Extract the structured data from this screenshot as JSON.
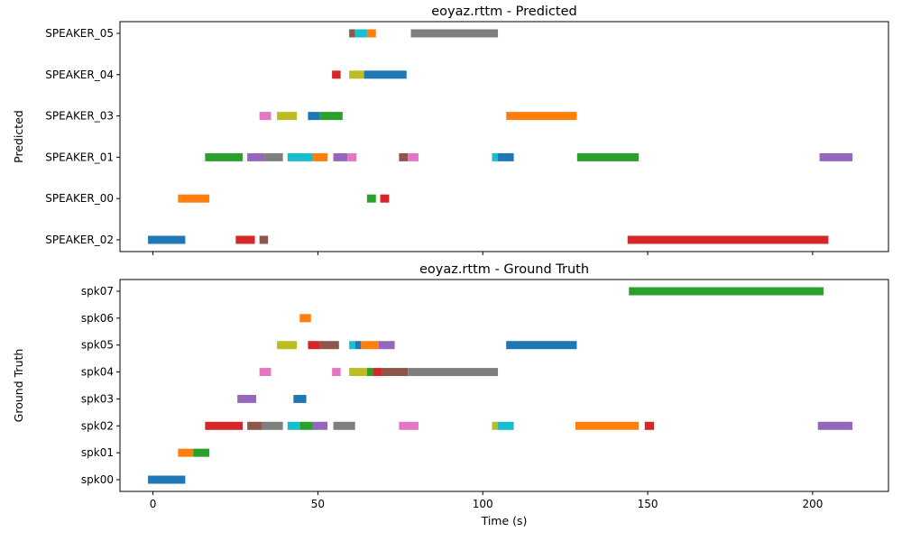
{
  "chart_data": [
    {
      "type": "timeline",
      "title": "eoyaz.rttm - Predicted",
      "xlabel": "",
      "ylabel": "Predicted",
      "xlim": [
        -10,
        223
      ],
      "xticks": [
        0,
        50,
        100,
        150,
        200
      ],
      "x_tick_labels_visible": false,
      "grid": false,
      "rows": [
        "SPEAKER_02",
        "SPEAKER_00",
        "SPEAKER_01",
        "SPEAKER_03",
        "SPEAKER_04",
        "SPEAKER_05"
      ],
      "segments": [
        {
          "row": "SPEAKER_02",
          "start": -1.5,
          "end": 9.8,
          "color": "#1f77b4"
        },
        {
          "row": "SPEAKER_02",
          "start": 25.1,
          "end": 30.9,
          "color": "#d62728"
        },
        {
          "row": "SPEAKER_02",
          "start": 32.3,
          "end": 34.9,
          "color": "#8c564b"
        },
        {
          "row": "SPEAKER_02",
          "start": 143.9,
          "end": 204.8,
          "color": "#d62728"
        },
        {
          "row": "SPEAKER_00",
          "start": 7.6,
          "end": 17.1,
          "color": "#ff7f0e"
        },
        {
          "row": "SPEAKER_00",
          "start": 64.9,
          "end": 67.6,
          "color": "#2ca02c"
        },
        {
          "row": "SPEAKER_00",
          "start": 68.9,
          "end": 71.6,
          "color": "#d62728"
        },
        {
          "row": "SPEAKER_01",
          "start": 15.8,
          "end": 27.2,
          "color": "#2ca02c"
        },
        {
          "row": "SPEAKER_01",
          "start": 28.6,
          "end": 34.0,
          "color": "#9467bd"
        },
        {
          "row": "SPEAKER_01",
          "start": 34.0,
          "end": 39.4,
          "color": "#7f7f7f"
        },
        {
          "row": "SPEAKER_01",
          "start": 40.8,
          "end": 48.4,
          "color": "#17becf"
        },
        {
          "row": "SPEAKER_01",
          "start": 48.4,
          "end": 52.9,
          "color": "#ff7f0e"
        },
        {
          "row": "SPEAKER_01",
          "start": 54.7,
          "end": 59.0,
          "color": "#9467bd"
        },
        {
          "row": "SPEAKER_01",
          "start": 59.0,
          "end": 61.7,
          "color": "#e377c2"
        },
        {
          "row": "SPEAKER_01",
          "start": 74.6,
          "end": 77.3,
          "color": "#8c564b"
        },
        {
          "row": "SPEAKER_01",
          "start": 77.3,
          "end": 80.5,
          "color": "#e377c2"
        },
        {
          "row": "SPEAKER_01",
          "start": 102.8,
          "end": 104.6,
          "color": "#17becf"
        },
        {
          "row": "SPEAKER_01",
          "start": 104.6,
          "end": 109.4,
          "color": "#1f77b4"
        },
        {
          "row": "SPEAKER_01",
          "start": 128.6,
          "end": 147.3,
          "color": "#2ca02c"
        },
        {
          "row": "SPEAKER_01",
          "start": 202.1,
          "end": 212.1,
          "color": "#9467bd"
        },
        {
          "row": "SPEAKER_03",
          "start": 32.3,
          "end": 35.8,
          "color": "#e377c2"
        },
        {
          "row": "SPEAKER_03",
          "start": 37.6,
          "end": 43.6,
          "color": "#bcbd22"
        },
        {
          "row": "SPEAKER_03",
          "start": 47.0,
          "end": 50.6,
          "color": "#1f77b4"
        },
        {
          "row": "SPEAKER_03",
          "start": 50.6,
          "end": 57.5,
          "color": "#2ca02c"
        },
        {
          "row": "SPEAKER_03",
          "start": 107.1,
          "end": 128.5,
          "color": "#ff7f0e"
        },
        {
          "row": "SPEAKER_04",
          "start": 54.3,
          "end": 56.9,
          "color": "#d62728"
        },
        {
          "row": "SPEAKER_04",
          "start": 59.5,
          "end": 64.0,
          "color": "#bcbd22"
        },
        {
          "row": "SPEAKER_04",
          "start": 64.0,
          "end": 76.9,
          "color": "#1f77b4"
        },
        {
          "row": "SPEAKER_05",
          "start": 59.5,
          "end": 61.3,
          "color": "#8c564b"
        },
        {
          "row": "SPEAKER_05",
          "start": 61.3,
          "end": 64.9,
          "color": "#17becf"
        },
        {
          "row": "SPEAKER_05",
          "start": 64.9,
          "end": 67.6,
          "color": "#ff7f0e"
        },
        {
          "row": "SPEAKER_05",
          "start": 78.2,
          "end": 104.6,
          "color": "#7f7f7f"
        }
      ]
    },
    {
      "type": "timeline",
      "title": "eoyaz.rttm - Ground Truth",
      "xlabel": "Time (s)",
      "ylabel": "Ground Truth",
      "xlim": [
        -10,
        223
      ],
      "xticks": [
        0,
        50,
        100,
        150,
        200
      ],
      "x_tick_labels_visible": true,
      "grid": false,
      "rows": [
        "spk00",
        "spk01",
        "spk02",
        "spk03",
        "spk04",
        "spk05",
        "spk06",
        "spk07"
      ],
      "segments": [
        {
          "row": "spk00",
          "start": -1.5,
          "end": 9.8,
          "color": "#1f77b4"
        },
        {
          "row": "spk01",
          "start": 7.6,
          "end": 12.2,
          "color": "#ff7f0e"
        },
        {
          "row": "spk01",
          "start": 12.2,
          "end": 17.1,
          "color": "#2ca02c"
        },
        {
          "row": "spk02",
          "start": 15.8,
          "end": 27.2,
          "color": "#d62728"
        },
        {
          "row": "spk02",
          "start": 28.6,
          "end": 33.1,
          "color": "#8c564b"
        },
        {
          "row": "spk02",
          "start": 33.1,
          "end": 39.4,
          "color": "#7f7f7f"
        },
        {
          "row": "spk02",
          "start": 40.8,
          "end": 44.5,
          "color": "#17becf"
        },
        {
          "row": "spk02",
          "start": 44.5,
          "end": 48.4,
          "color": "#2ca02c"
        },
        {
          "row": "spk02",
          "start": 48.4,
          "end": 52.9,
          "color": "#9467bd"
        },
        {
          "row": "spk02",
          "start": 54.7,
          "end": 61.3,
          "color": "#7f7f7f"
        },
        {
          "row": "spk02",
          "start": 74.6,
          "end": 80.5,
          "color": "#e377c2"
        },
        {
          "row": "spk02",
          "start": 102.8,
          "end": 104.6,
          "color": "#bcbd22"
        },
        {
          "row": "spk02",
          "start": 104.6,
          "end": 109.4,
          "color": "#17becf"
        },
        {
          "row": "spk02",
          "start": 128.1,
          "end": 147.3,
          "color": "#ff7f0e"
        },
        {
          "row": "spk02",
          "start": 149.1,
          "end": 151.9,
          "color": "#d62728"
        },
        {
          "row": "spk02",
          "start": 201.6,
          "end": 212.1,
          "color": "#9467bd"
        },
        {
          "row": "spk03",
          "start": 25.6,
          "end": 31.3,
          "color": "#9467bd"
        },
        {
          "row": "spk03",
          "start": 42.6,
          "end": 46.5,
          "color": "#1f77b4"
        },
        {
          "row": "spk04",
          "start": 32.3,
          "end": 35.8,
          "color": "#e377c2"
        },
        {
          "row": "spk04",
          "start": 54.3,
          "end": 56.9,
          "color": "#e377c2"
        },
        {
          "row": "spk04",
          "start": 59.5,
          "end": 64.9,
          "color": "#bcbd22"
        },
        {
          "row": "spk04",
          "start": 64.9,
          "end": 66.7,
          "color": "#2ca02c"
        },
        {
          "row": "spk04",
          "start": 66.7,
          "end": 69.3,
          "color": "#d62728"
        },
        {
          "row": "spk04",
          "start": 69.3,
          "end": 77.3,
          "color": "#8c564b"
        },
        {
          "row": "spk04",
          "start": 77.3,
          "end": 104.6,
          "color": "#7f7f7f"
        },
        {
          "row": "spk05",
          "start": 37.6,
          "end": 43.6,
          "color": "#bcbd22"
        },
        {
          "row": "spk05",
          "start": 47.0,
          "end": 50.6,
          "color": "#d62728"
        },
        {
          "row": "spk05",
          "start": 50.6,
          "end": 56.4,
          "color": "#8c564b"
        },
        {
          "row": "spk05",
          "start": 59.5,
          "end": 61.3,
          "color": "#17becf"
        },
        {
          "row": "spk05",
          "start": 61.3,
          "end": 63.1,
          "color": "#1f77b4"
        },
        {
          "row": "spk05",
          "start": 63.1,
          "end": 68.4,
          "color": "#ff7f0e"
        },
        {
          "row": "spk05",
          "start": 68.4,
          "end": 73.3,
          "color": "#9467bd"
        },
        {
          "row": "spk05",
          "start": 107.1,
          "end": 128.5,
          "color": "#1f77b4"
        },
        {
          "row": "spk06",
          "start": 44.5,
          "end": 47.9,
          "color": "#ff7f0e"
        },
        {
          "row": "spk07",
          "start": 144.3,
          "end": 203.3,
          "color": "#2ca02c"
        }
      ]
    }
  ]
}
